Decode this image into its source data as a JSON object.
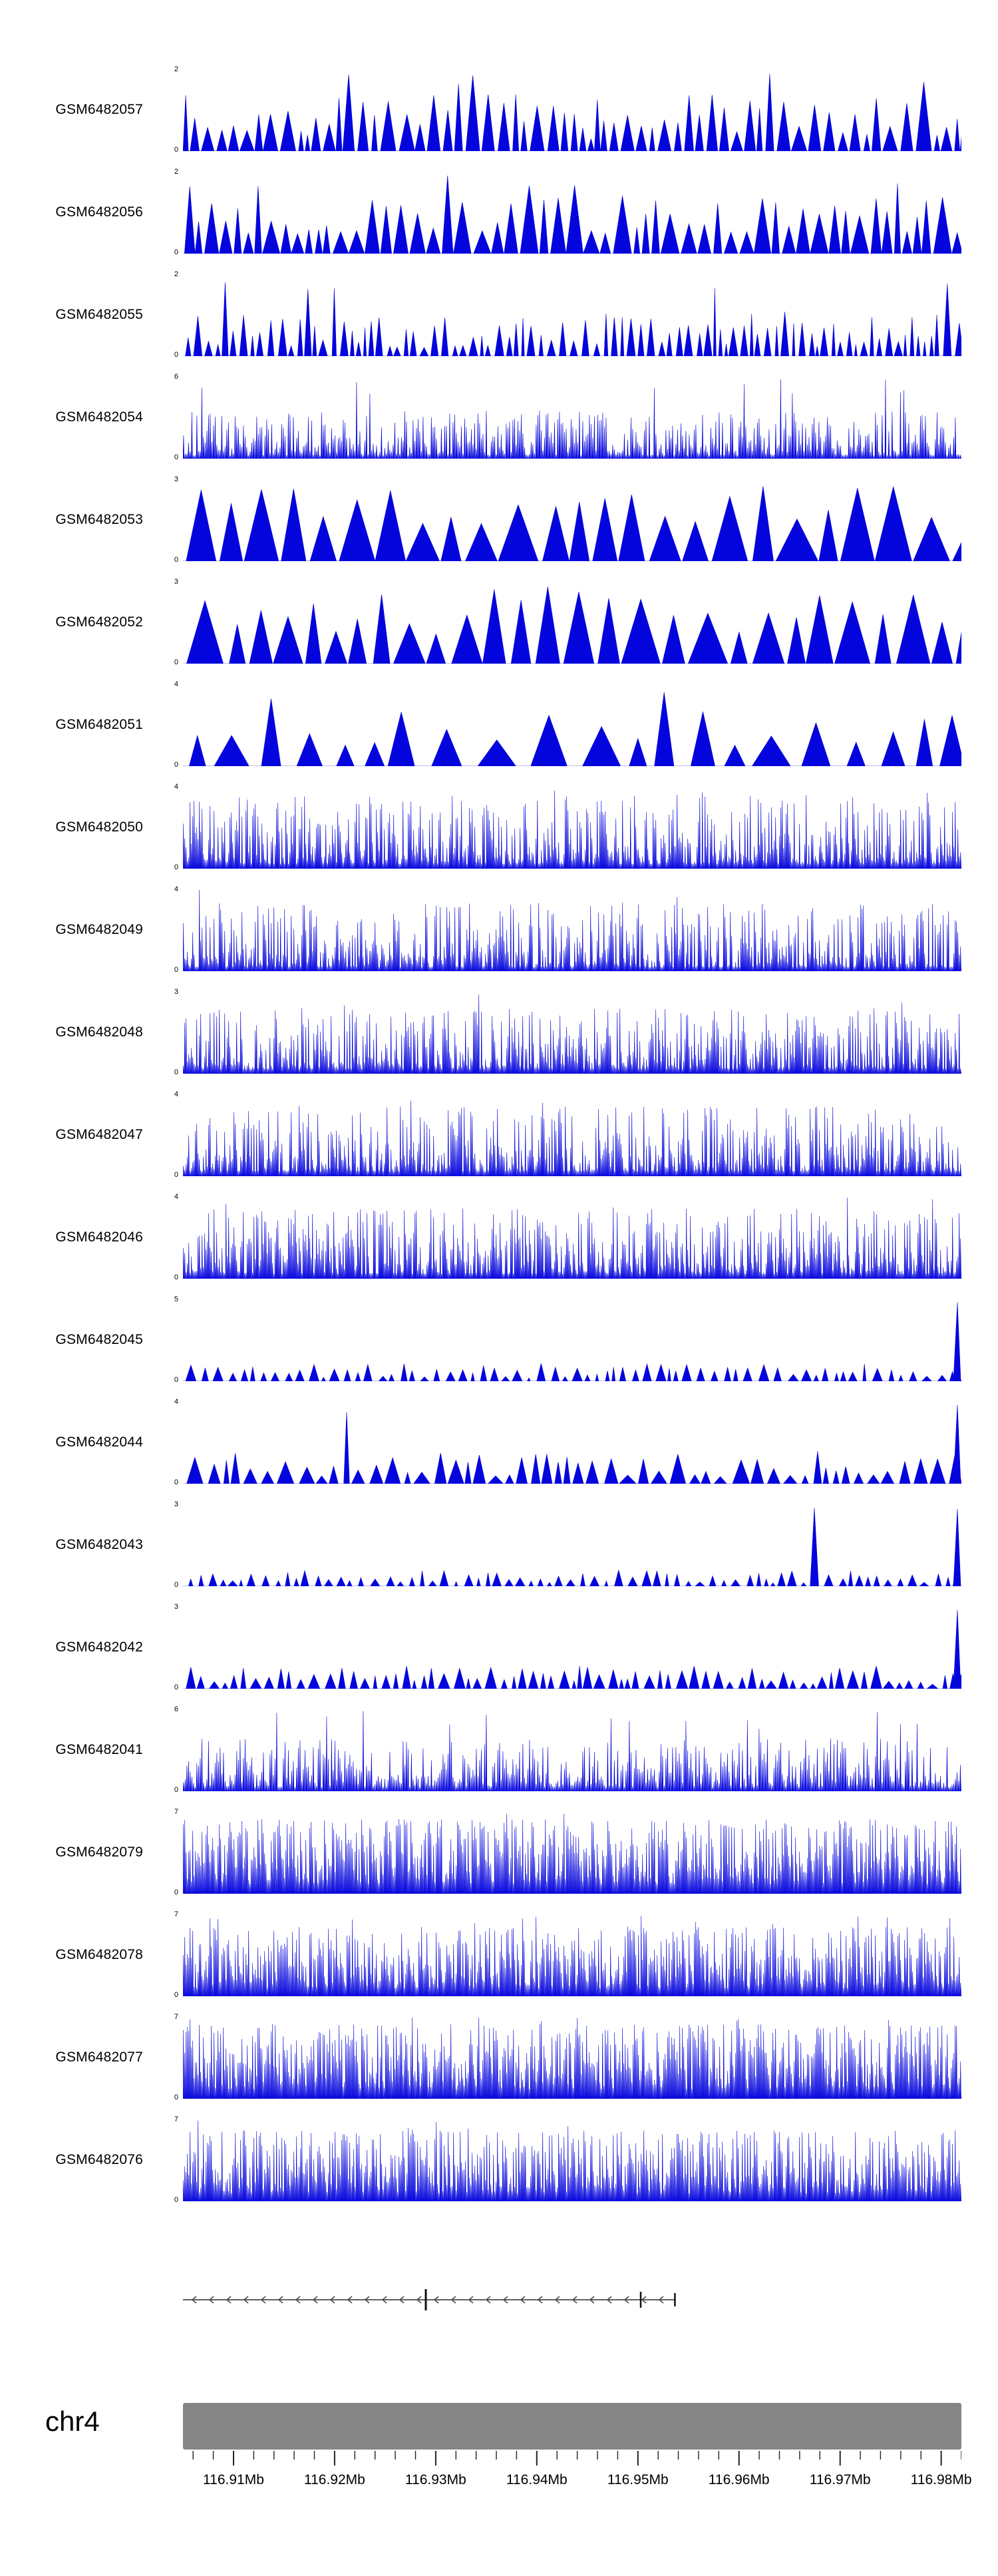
{
  "chart_data": {
    "type": "area",
    "title": "",
    "signal_color": "#0404dd",
    "region": {
      "chromosome": "chr4",
      "start_mb": 116.905,
      "end_mb": 116.982,
      "minor_tick_step_mb": 0.002,
      "major_tick_values_mb": [
        116.91,
        116.92,
        116.93,
        116.94,
        116.95,
        116.96,
        116.97,
        116.98
      ],
      "major_tick_labels": [
        "116.91Mb",
        "116.92Mb",
        "116.93Mb",
        "116.94Mb",
        "116.95Mb",
        "116.96Mb",
        "116.97Mb",
        "116.98Mb"
      ]
    },
    "tracks": [
      {
        "name": "GSM6482057",
        "ymin": 0,
        "ymax": 2,
        "signal": {
          "pattern": "triangles",
          "seed": 7,
          "gap": [
            0,
            5
          ],
          "w": [
            7,
            24
          ],
          "h": [
            0.15,
            0.7
          ],
          "tall": 0.12
        }
      },
      {
        "name": "GSM6482056",
        "ymin": 0,
        "ymax": 2,
        "signal": {
          "pattern": "triangles",
          "seed": 13,
          "gap": [
            0,
            4
          ],
          "w": [
            9,
            28
          ],
          "h": [
            0.2,
            0.75
          ],
          "tall": 0.1
        }
      },
      {
        "name": "GSM6482055",
        "ymin": 0,
        "ymax": 2,
        "signal": {
          "pattern": "triangles",
          "seed": 21,
          "gap": [
            1,
            7
          ],
          "w": [
            4,
            14
          ],
          "h": [
            0.1,
            0.55
          ],
          "tall": 0.07
        }
      },
      {
        "name": "GSM6482054",
        "ymin": 0,
        "ymax": 6,
        "signal": {
          "pattern": "needles",
          "seed": 34,
          "step": 2.5,
          "base": 0.04,
          "amp": 0.55,
          "pow": 1.6,
          "tall": 0.02
        }
      },
      {
        "name": "GSM6482053",
        "ymin": 0,
        "ymax": 3,
        "signal": {
          "pattern": "triangles",
          "seed": 42,
          "gap": [
            0,
            8
          ],
          "w": [
            28,
            66
          ],
          "h": [
            0.45,
            0.95
          ],
          "tall": 0.0
        }
      },
      {
        "name": "GSM6482052",
        "ymin": 0,
        "ymax": 3,
        "signal": {
          "pattern": "triangles",
          "seed": 55,
          "gap": [
            0,
            12
          ],
          "w": [
            22,
            60
          ],
          "h": [
            0.35,
            0.95
          ],
          "tall": 0.0
        }
      },
      {
        "name": "GSM6482051",
        "ymin": 0,
        "ymax": 4,
        "signal": {
          "pattern": "triangles",
          "seed": 63,
          "gap": [
            4,
            26
          ],
          "w": [
            22,
            58
          ],
          "h": [
            0.25,
            0.7
          ],
          "tall": 0.05
        }
      },
      {
        "name": "GSM6482050",
        "ymin": 0,
        "ymax": 4,
        "signal": {
          "pattern": "needles",
          "seed": 71,
          "step": 2,
          "base": 0.06,
          "amp": 0.85,
          "pow": 2.0,
          "tall": 0.01
        }
      },
      {
        "name": "GSM6482049",
        "ymin": 0,
        "ymax": 4,
        "signal": {
          "pattern": "needles",
          "seed": 88,
          "step": 2,
          "base": 0.05,
          "amp": 0.8,
          "pow": 2.2,
          "tall": 0.01
        }
      },
      {
        "name": "GSM6482048",
        "ymin": 0,
        "ymax": 3,
        "signal": {
          "pattern": "needles",
          "seed": 94,
          "step": 2,
          "base": 0.06,
          "amp": 0.75,
          "pow": 2.0,
          "tall": 0.008
        }
      },
      {
        "name": "GSM6482047",
        "ymin": 0,
        "ymax": 4,
        "signal": {
          "pattern": "needles",
          "seed": 103,
          "step": 2,
          "base": 0.06,
          "amp": 0.8,
          "pow": 2.0,
          "tall": 0.012
        }
      },
      {
        "name": "GSM6482046",
        "ymin": 0,
        "ymax": 4,
        "signal": {
          "pattern": "needles",
          "seed": 112,
          "step": 2,
          "base": 0.06,
          "amp": 0.8,
          "pow": 1.9,
          "tall": 0.012
        }
      },
      {
        "name": "GSM6482045",
        "ymin": 0,
        "ymax": 5,
        "signal": {
          "pattern": "triangles",
          "seed": 127,
          "gap": [
            2,
            10
          ],
          "w": [
            5,
            16
          ],
          "h": [
            0.04,
            0.22
          ],
          "tall": 0.015,
          "endSpike": 0.97
        }
      },
      {
        "name": "GSM6482044",
        "ymin": 0,
        "ymax": 4,
        "signal": {
          "pattern": "triangles",
          "seed": 133,
          "gap": [
            1,
            9
          ],
          "w": [
            8,
            26
          ],
          "h": [
            0.08,
            0.4
          ],
          "tall": 0.02,
          "endSpike": 0.97
        }
      },
      {
        "name": "GSM6482043",
        "ymin": 0,
        "ymax": 3,
        "signal": {
          "pattern": "triangles",
          "seed": 141,
          "gap": [
            2,
            10
          ],
          "w": [
            5,
            15
          ],
          "h": [
            0.04,
            0.22
          ],
          "tall": 0.01,
          "endSpike": 0.95
        }
      },
      {
        "name": "GSM6482042",
        "ymin": 0,
        "ymax": 3,
        "signal": {
          "pattern": "triangles",
          "seed": 156,
          "gap": [
            1,
            8
          ],
          "w": [
            6,
            18
          ],
          "h": [
            0.05,
            0.28
          ],
          "tall": 0.015,
          "endSpike": 0.97
        }
      },
      {
        "name": "GSM6482041",
        "ymin": 0,
        "ymax": 6,
        "signal": {
          "pattern": "needles",
          "seed": 164,
          "step": 2.5,
          "base": 0.05,
          "amp": 0.6,
          "pow": 1.6,
          "tall": 0.02
        }
      },
      {
        "name": "GSM6482079",
        "ymin": 0,
        "ymax": 7,
        "signal": {
          "pattern": "needles",
          "seed": 178,
          "step": 2,
          "base": 0.12,
          "amp": 0.8,
          "pow": 1.15,
          "tall": 0.03
        }
      },
      {
        "name": "GSM6482078",
        "ymin": 0,
        "ymax": 7,
        "signal": {
          "pattern": "needles",
          "seed": 186,
          "step": 2,
          "base": 0.1,
          "amp": 0.75,
          "pow": 1.25,
          "tall": 0.02
        }
      },
      {
        "name": "GSM6482077",
        "ymin": 0,
        "ymax": 7,
        "signal": {
          "pattern": "needles",
          "seed": 199,
          "step": 2,
          "base": 0.12,
          "amp": 0.8,
          "pow": 1.2,
          "tall": 0.03
        }
      },
      {
        "name": "GSM6482076",
        "ymin": 0,
        "ymax": 7,
        "signal": {
          "pattern": "needles",
          "seed": 205,
          "step": 2,
          "base": 0.1,
          "amp": 0.78,
          "pow": 1.25,
          "tall": 0.025
        }
      }
    ],
    "gene_track": {
      "direction": "left",
      "start_frac": 0.0,
      "end_frac": 0.632,
      "arrow_spacing_px": 26,
      "marks": [
        {
          "frac": 0.312,
          "half_height": 16,
          "width": 3
        },
        {
          "frac": 0.588,
          "half_height": 12,
          "width": 2.5
        },
        {
          "frac": 0.632,
          "half_height": 10,
          "width": 2.5
        }
      ]
    }
  }
}
